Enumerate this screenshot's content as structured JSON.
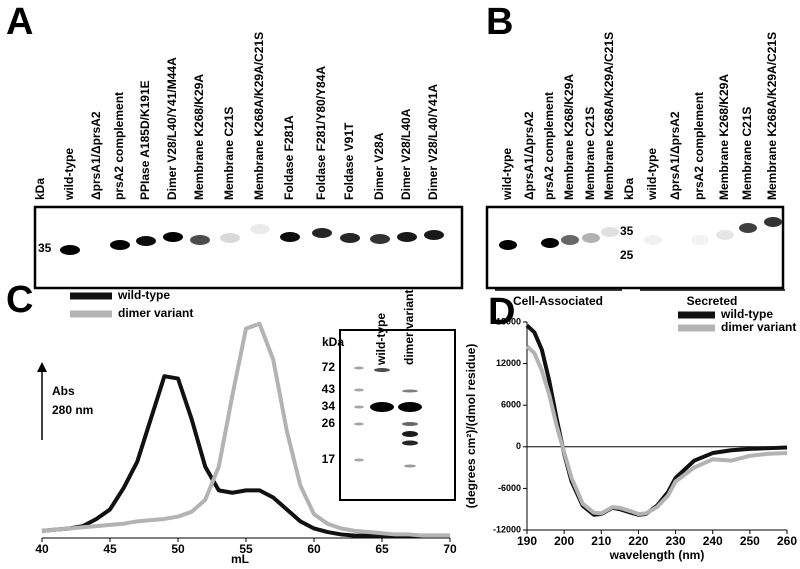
{
  "panels": {
    "A": {
      "letter": "A",
      "lanes": [
        "kDa",
        "wild-type",
        "ΔprsA1/ΔprsA2",
        "prsA2 complement",
        "PPIase A185D/K191E",
        "Dimer V28/L40/Y41/M44A",
        "Membrane K268/K29A",
        "Membrane C21S",
        "Membrane K268A/K29A/C21S",
        "Foldase F281A",
        "Foldase F281/Y80/Y84A",
        "Foldase V91T",
        "Dimer V28A",
        "Dimer V28/L40A",
        "Dimer V28/L40/Y41A"
      ],
      "markers": [
        35
      ]
    },
    "B": {
      "letter": "B",
      "lanes": [
        "wild-type",
        "ΔprsA1/ΔprsA2",
        "prsA2 complement",
        "Membrane K268/K29A",
        "Membrane C21S",
        "Membrane K268A/K29A/C21S",
        "kDa",
        "wild-type",
        "ΔprsA1/ΔprsA2",
        "prsA2 complement",
        "Membrane K268/K29A",
        "Membrane C21S",
        "Membrane K268A/K29A/C21S"
      ],
      "markers": [
        35,
        25
      ],
      "groups": [
        "Cell-Associated",
        "Secreted"
      ]
    },
    "C_inset": {
      "lanes": [
        "kDa",
        "wild-type",
        "dimer variant"
      ],
      "markers": [
        72,
        43,
        34,
        26,
        17
      ]
    }
  },
  "chart_data": [
    {
      "type": "line",
      "panel_label": "C",
      "x_label": "mL",
      "y_label": [
        "Abs",
        "280 nm"
      ],
      "x": [
        40,
        41,
        42,
        43,
        44,
        45,
        46,
        47,
        48,
        49,
        50,
        51,
        52,
        53,
        54,
        55,
        56,
        57,
        58,
        59,
        60,
        61,
        62,
        63,
        64,
        65,
        66,
        67,
        68,
        69,
        70
      ],
      "xlim": [
        40,
        70
      ],
      "xticks": [
        40,
        45,
        50,
        55,
        60,
        65,
        70
      ],
      "ylim": [
        0,
        100
      ],
      "legend": "upper left",
      "grid": false,
      "series": [
        {
          "name": "wild-type",
          "color": "#111111",
          "values": [
            3,
            3.5,
            4,
            5,
            8,
            12,
            21,
            32,
            50,
            68,
            67,
            50,
            30,
            20,
            19,
            20,
            20,
            17,
            12,
            7,
            4,
            2.5,
            1.5,
            1,
            1,
            1,
            1,
            1,
            1,
            1,
            1
          ]
        },
        {
          "name": "dimer variant",
          "color": "#b3b3b3",
          "values": [
            3,
            3.5,
            4,
            4.5,
            5,
            5.5,
            6,
            7,
            7.5,
            8,
            9,
            11,
            16,
            30,
            60,
            88,
            90,
            75,
            45,
            22,
            10,
            6,
            4,
            3,
            2.5,
            2,
            1.5,
            1.5,
            1,
            1,
            1
          ]
        }
      ]
    },
    {
      "type": "line",
      "panel_label": "D",
      "x_label": "wavelength (nm)",
      "y_label": "(degrees cm²)/(dmol residue)",
      "x": [
        190,
        192,
        194,
        196,
        198,
        200,
        202,
        205,
        208,
        210,
        213,
        215,
        218,
        220,
        222,
        225,
        228,
        230,
        235,
        240,
        245,
        250,
        255,
        260
      ],
      "xlim": [
        190,
        260
      ],
      "xticks": [
        190,
        200,
        210,
        220,
        230,
        240,
        250,
        260
      ],
      "ylim": [
        -12000,
        18000
      ],
      "yticks": [
        -12000,
        -6000,
        0,
        6000,
        12000,
        18000
      ],
      "legend": "upper right",
      "grid": false,
      "series": [
        {
          "name": "wild-type",
          "color": "#111111",
          "values": [
            17500,
            16500,
            14000,
            9500,
            4000,
            -1000,
            -5000,
            -8500,
            -9800,
            -9700,
            -8800,
            -9000,
            -9500,
            -9800,
            -9700,
            -8500,
            -6500,
            -4500,
            -2000,
            -900,
            -500,
            -300,
            -200,
            -100
          ]
        },
        {
          "name": "dimer variant",
          "color": "#b3b3b3",
          "values": [
            14500,
            13500,
            11000,
            7500,
            3000,
            -800,
            -4500,
            -8200,
            -9500,
            -9600,
            -8700,
            -8800,
            -9300,
            -9700,
            -9600,
            -8700,
            -7000,
            -5000,
            -3000,
            -1800,
            -2000,
            -1300,
            -1000,
            -900
          ]
        }
      ]
    }
  ]
}
